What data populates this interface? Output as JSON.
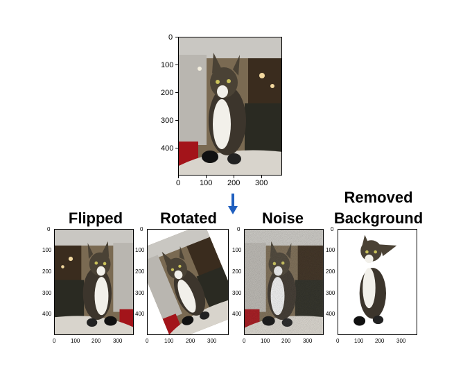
{
  "labels": {
    "flipped": "Flipped",
    "rotated": "Rotated",
    "noise": "Noise",
    "removed_line1": "Removed",
    "removed_line2": "Background"
  },
  "main_plot": {
    "y_ticks": [
      "0",
      "100",
      "200",
      "300",
      "400"
    ],
    "x_ticks": [
      "0",
      "100",
      "200",
      "300"
    ]
  },
  "small_plots": {
    "y_ticks": [
      "0",
      "100",
      "200",
      "300",
      "400"
    ],
    "x_ticks": [
      "0",
      "100",
      "200",
      "300"
    ]
  },
  "colors": {
    "arrow": "#1f5fbf",
    "wall": "#b9b6b0",
    "cat_dark": "#3c352c",
    "cat_white": "#f2f0ea",
    "red_bin": "#a3141a",
    "blanket": "#d8d4cc"
  }
}
